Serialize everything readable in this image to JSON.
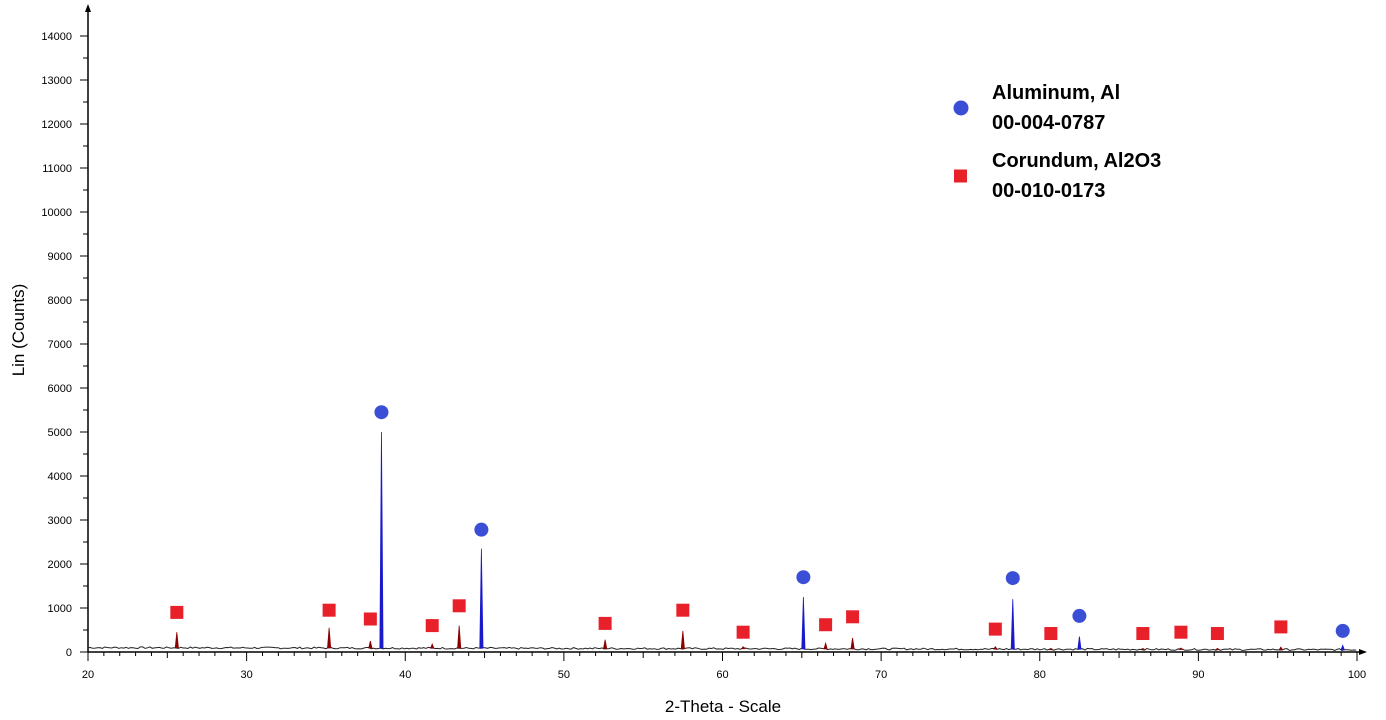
{
  "chart_data": {
    "type": "line",
    "xlabel": "2-Theta - Scale",
    "ylabel": "Lin (Counts)",
    "xlim": [
      20,
      100
    ],
    "ylim": [
      0,
      14500
    ],
    "x_ticks": [
      20,
      30,
      40,
      50,
      60,
      70,
      80,
      90,
      100
    ],
    "y_ticks": [
      0,
      1000,
      2000,
      3000,
      4000,
      5000,
      6000,
      7000,
      8000,
      9000,
      10000,
      11000,
      12000,
      13000,
      14000
    ],
    "grid": false,
    "legend_position": "top-right",
    "baseline_counts": 100,
    "series": [
      {
        "name": "Aluminum, Al 00-004-0787",
        "line_color": "#1a1acc",
        "marker": "circle",
        "marker_color": "#3b4fd6",
        "peaks": [
          {
            "x": 38.5,
            "y": 5000,
            "marker_y": 5450
          },
          {
            "x": 44.8,
            "y": 2350,
            "marker_y": 2780
          },
          {
            "x": 65.1,
            "y": 1250,
            "marker_y": 1700
          },
          {
            "x": 78.3,
            "y": 1200,
            "marker_y": 1680
          },
          {
            "x": 82.5,
            "y": 350,
            "marker_y": 820
          },
          {
            "x": 99.1,
            "y": 150,
            "marker_y": 480
          }
        ]
      },
      {
        "name": "Corundum, Al2O3 00-010-0173",
        "line_color": "#8a0000",
        "marker": "square",
        "marker_color": "#e8202a",
        "peaks": [
          {
            "x": 25.6,
            "y": 450,
            "marker_y": 900
          },
          {
            "x": 35.2,
            "y": 550,
            "marker_y": 950
          },
          {
            "x": 37.8,
            "y": 250,
            "marker_y": 750
          },
          {
            "x": 41.7,
            "y": 180,
            "marker_y": 600
          },
          {
            "x": 43.4,
            "y": 600,
            "marker_y": 1050
          },
          {
            "x": 52.6,
            "y": 280,
            "marker_y": 650
          },
          {
            "x": 57.5,
            "y": 480,
            "marker_y": 950
          },
          {
            "x": 61.3,
            "y": 120,
            "marker_y": 450
          },
          {
            "x": 66.5,
            "y": 200,
            "marker_y": 620
          },
          {
            "x": 68.2,
            "y": 320,
            "marker_y": 800
          },
          {
            "x": 77.2,
            "y": 120,
            "marker_y": 520
          },
          {
            "x": 80.7,
            "y": 80,
            "marker_y": 420
          },
          {
            "x": 86.5,
            "y": 80,
            "marker_y": 420
          },
          {
            "x": 88.9,
            "y": 90,
            "marker_y": 450
          },
          {
            "x": 91.2,
            "y": 80,
            "marker_y": 420
          },
          {
            "x": 95.2,
            "y": 110,
            "marker_y": 570
          }
        ]
      }
    ],
    "legend": [
      {
        "marker": "circle",
        "color": "#3b4fd6",
        "lines": [
          "Aluminum, Al",
          "00-004-0787"
        ]
      },
      {
        "marker": "square",
        "color": "#e8202a",
        "lines": [
          "Corundum, Al2O3",
          "00-010-0173"
        ]
      }
    ]
  }
}
